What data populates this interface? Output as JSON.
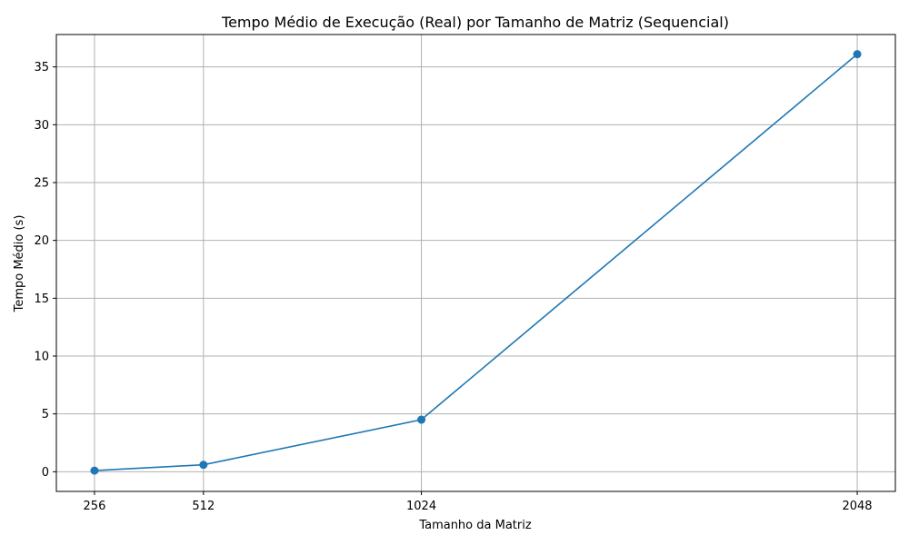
{
  "chart_data": {
    "type": "line",
    "title": "Tempo Médio de Execução (Real) por Tamanho de Matriz (Sequencial)",
    "xlabel": "Tamanho da Matriz",
    "ylabel": "Tempo Médio (s)",
    "x": [
      256,
      512,
      1024,
      2048
    ],
    "xticks": [
      "256",
      "512",
      "1024",
      "2048"
    ],
    "xlim": [
      166.4,
      2137.6
    ],
    "ylim": [
      -1.7,
      37.8
    ],
    "yticks": [
      0,
      5,
      10,
      15,
      20,
      25,
      30,
      35
    ],
    "ytick_labels": [
      "0",
      "5",
      "10",
      "15",
      "20",
      "25",
      "30",
      "35"
    ],
    "series": [
      {
        "values": [
          0.1,
          0.6,
          4.5,
          36.1
        ],
        "color": "#1f77b4",
        "marker": "circle"
      }
    ],
    "grid": true,
    "legend": "none"
  }
}
